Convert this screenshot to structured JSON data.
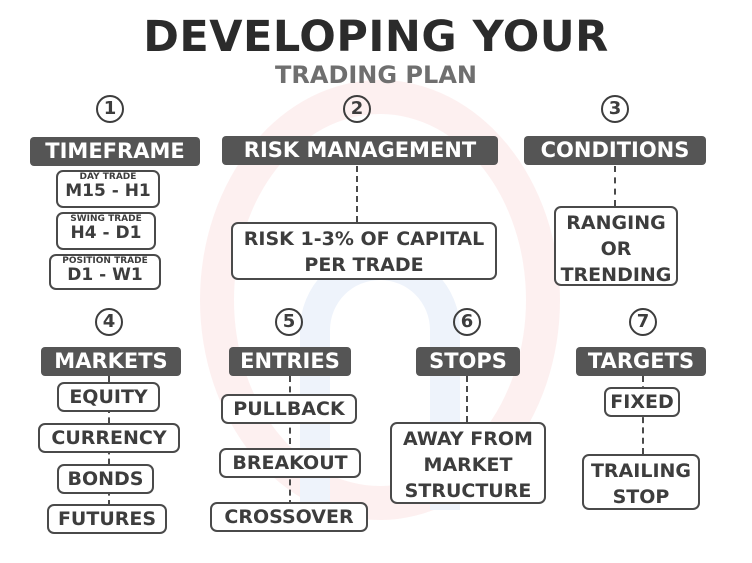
{
  "title": "DEVELOPING YOUR",
  "subtitle": "TRADING PLAN",
  "sections": {
    "timeframe": {
      "number": "1",
      "heading": "TIMEFRAME",
      "items": [
        {
          "small": "DAY TRADE",
          "big": "M15 - H1"
        },
        {
          "small": "SWING TRADE",
          "big": "H4 - D1"
        },
        {
          "small": "POSITION TRADE",
          "big": "D1 - W1"
        }
      ]
    },
    "risk": {
      "number": "2",
      "heading": "RISK MANAGEMENT",
      "line1": "RISK 1-3% OF CAPITAL",
      "line2": "PER TRADE"
    },
    "conditions": {
      "number": "3",
      "heading": "CONDITIONS",
      "line1": "RANGING",
      "line2": "OR",
      "line3": "TRENDING"
    },
    "markets": {
      "number": "4",
      "heading": "MARKETS",
      "items": [
        "EQUITY",
        "CURRENCY",
        "BONDS",
        "FUTURES"
      ]
    },
    "entries": {
      "number": "5",
      "heading": "ENTRIES",
      "items": [
        "PULLBACK",
        "BREAKOUT",
        "CROSSOVER"
      ]
    },
    "stops": {
      "number": "6",
      "heading": "STOPS",
      "line1": "AWAY FROM",
      "line2": "MARKET",
      "line3": "STRUCTURE"
    },
    "targets": {
      "number": "7",
      "heading": "TARGETS",
      "item1": "FIXED",
      "item2_line1": "TRAILING",
      "item2_line2": "STOP"
    }
  }
}
